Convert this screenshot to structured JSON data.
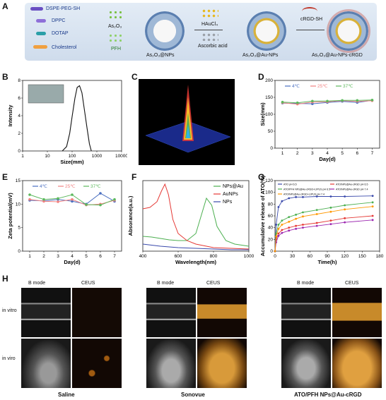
{
  "panels": {
    "A": "A",
    "B": "B",
    "C": "C",
    "D": "D",
    "E": "E",
    "F": "F",
    "G": "G",
    "H": "H"
  },
  "schematic": {
    "lipids": [
      "DSPE-PEG-SH",
      "DPPC",
      "DOTAP",
      "Cholesterol"
    ],
    "drugs": [
      "As₂O₃",
      "PFH"
    ],
    "reagents": [
      "HAuCl₄",
      "Ascorbic acid"
    ],
    "ligand": "cRGD-SH",
    "products": [
      "As₂O₃@NPs",
      "As₂O₃@Au-NPs",
      "As₂O₃@Au-NPs-cRGD"
    ]
  },
  "ultrasound": {
    "groups": [
      "Saline",
      "Sonovue",
      "ATO/PFH NPs@Au-cRGD"
    ],
    "modes": [
      "B mode",
      "CEUS"
    ],
    "rows": [
      "in vitro",
      "in viro"
    ]
  },
  "chart_data": [
    {
      "id": "B",
      "type": "line",
      "xlabel": "Size(mm)",
      "ylabel": "Intensity",
      "xscale": "log",
      "xlim": [
        1,
        10000
      ],
      "ylim": [
        0,
        8
      ],
      "xticks": [
        "1",
        "10",
        "100",
        "1000",
        "10000"
      ],
      "yticks": [
        "0",
        "2",
        "4",
        "6",
        "8"
      ],
      "x": [
        40,
        60,
        80,
        100,
        130,
        160,
        200,
        250,
        320,
        400,
        500,
        600
      ],
      "values": [
        0,
        0.5,
        2.0,
        3.9,
        6.0,
        7.2,
        7.4,
        6.6,
        4.5,
        2.6,
        0.8,
        0
      ]
    },
    {
      "id": "C",
      "type": "heatmap",
      "note": "3D surface plot"
    },
    {
      "id": "D",
      "type": "line",
      "xlabel": "Day(d)",
      "ylabel": "Size(mm)",
      "ylim": [
        0,
        200
      ],
      "xticks": [
        "1",
        "2",
        "3",
        "4",
        "5",
        "6",
        "7"
      ],
      "yticks": [
        "0",
        "50",
        "100",
        "150",
        "200"
      ],
      "x": [
        1,
        2,
        3,
        4,
        5,
        6,
        7
      ],
      "series": [
        {
          "name": "4℃",
          "color": "#4a6fc0",
          "values": [
            133,
            132,
            131,
            135,
            138,
            135,
            141
          ]
        },
        {
          "name": "25℃",
          "color": "#f08080",
          "values": [
            134,
            130,
            136,
            137,
            140,
            138,
            140
          ]
        },
        {
          "name": "37℃",
          "color": "#5cb85c",
          "values": [
            136,
            134,
            139,
            139,
            141,
            141,
            142
          ]
        }
      ]
    },
    {
      "id": "E",
      "type": "line",
      "xlabel": "Day(d)",
      "ylabel": "Zeta potential(mV)",
      "ylim": [
        0,
        15
      ],
      "xticks": [
        "1",
        "2",
        "3",
        "4",
        "5",
        "6",
        "7"
      ],
      "yticks": [
        "0",
        "5",
        "10",
        "15"
      ],
      "x": [
        1,
        2,
        3,
        4,
        5,
        6,
        7
      ],
      "series": [
        {
          "name": "4℃",
          "color": "#4a6fc0",
          "values": [
            10.8,
            10.7,
            11.0,
            10.6,
            10.0,
            12.3,
            10.6
          ]
        },
        {
          "name": "25℃",
          "color": "#f08080",
          "values": [
            11.0,
            10.6,
            10.5,
            11.0,
            9.8,
            10.0,
            10.8
          ]
        },
        {
          "name": "37℃",
          "color": "#5cb85c",
          "values": [
            12.0,
            11.0,
            11.2,
            12.0,
            9.9,
            9.8,
            11.0
          ]
        }
      ]
    },
    {
      "id": "F",
      "type": "line",
      "xlabel": "Wavelength(nm)",
      "ylabel": "Absorance(a.u.)",
      "xlim": [
        400,
        1000
      ],
      "xticks": [
        "400",
        "600",
        "800",
        "1000"
      ],
      "series": [
        {
          "name": "NPs@Au",
          "color": "#4caf50",
          "x": [
            400,
            450,
            500,
            550,
            600,
            650,
            700,
            730,
            760,
            790,
            820,
            870,
            920,
            1000
          ],
          "values": [
            0.21,
            0.2,
            0.18,
            0.16,
            0.15,
            0.15,
            0.25,
            0.5,
            0.75,
            0.65,
            0.35,
            0.15,
            0.1,
            0.07
          ]
        },
        {
          "name": "AuNPs",
          "color": "#e53935",
          "x": [
            400,
            440,
            480,
            505,
            525,
            545,
            570,
            600,
            650,
            700,
            800,
            1000
          ],
          "values": [
            0.6,
            0.62,
            0.7,
            0.85,
            0.95,
            0.8,
            0.45,
            0.25,
            0.15,
            0.1,
            0.05,
            0.03
          ]
        },
        {
          "name": "NPs",
          "color": "#3949ab",
          "x": [
            400,
            500,
            600,
            700,
            800,
            900,
            1000
          ],
          "values": [
            0.1,
            0.07,
            0.05,
            0.04,
            0.03,
            0.02,
            0.02
          ]
        }
      ]
    },
    {
      "id": "G",
      "type": "line",
      "xlabel": "Time(h)",
      "ylabel": "Accumulative release of ATO(%)",
      "xlim": [
        0,
        180
      ],
      "ylim": [
        0,
        120
      ],
      "xticks": [
        "0",
        "30",
        "60",
        "90",
        "120",
        "150",
        "180"
      ],
      "yticks": [
        "0",
        "20",
        "40",
        "60",
        "80",
        "100",
        "120"
      ],
      "x": [
        0,
        2,
        6,
        12,
        24,
        36,
        48,
        72,
        96,
        120,
        168
      ],
      "series": [
        {
          "name": "ATO pH 6.5",
          "color": "#3949ab",
          "values": [
            0,
            45,
            75,
            85,
            90,
            92,
            92,
            93,
            93,
            93,
            94
          ]
        },
        {
          "name": "ATO/NPs@Au-cRGD pH 6.5",
          "color": "#e53935",
          "values": [
            0,
            20,
            30,
            36,
            40,
            43,
            45,
            48,
            52,
            56,
            60
          ]
        },
        {
          "name": "ATO/PFH NPs@Au-cRGD+LIPUS pH 6.5",
          "color": "#4caf50",
          "values": [
            0,
            30,
            45,
            52,
            58,
            62,
            66,
            70,
            74,
            78,
            83
          ]
        },
        {
          "name": "ATO/NPs@Au-cRGD pH 7.4",
          "color": "#9c27b0",
          "values": [
            0,
            15,
            26,
            31,
            35,
            38,
            40,
            43,
            46,
            49,
            53
          ]
        },
        {
          "name": "ATO/NPs@Au-cRGD+LIPUS pH 7.4",
          "color": "#ff9800",
          "values": [
            0,
            25,
            38,
            45,
            50,
            55,
            59,
            63,
            67,
            71,
            76
          ]
        }
      ]
    }
  ]
}
